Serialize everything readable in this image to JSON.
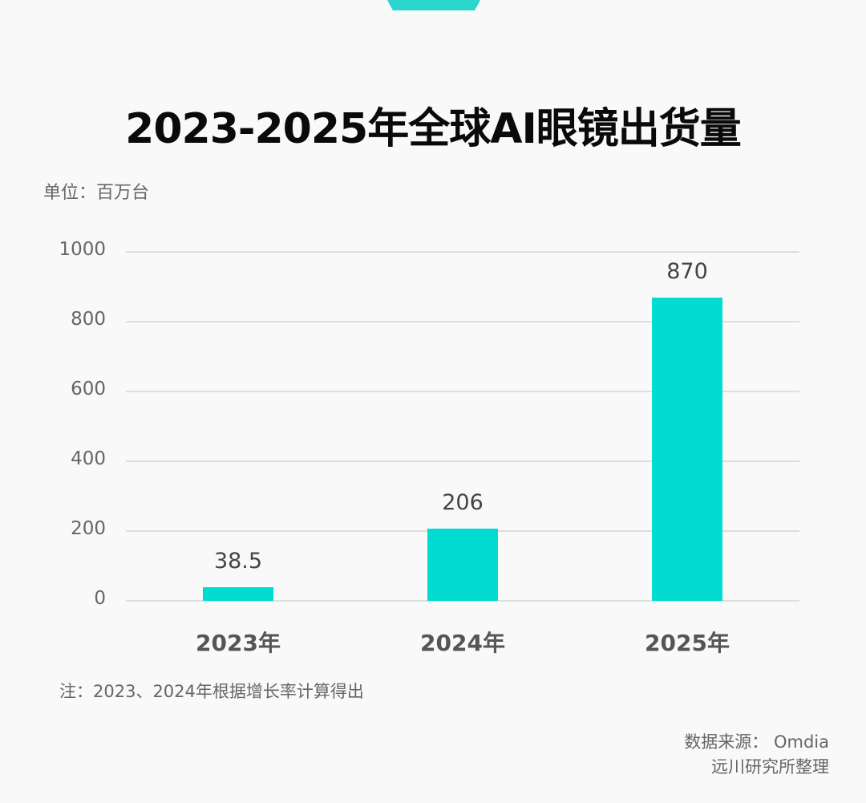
{
  "title": "2023-2025年全球AI眼镜出货量",
  "unit": "单位：百万台",
  "note": "注：2023、2024年根据增长率计算得出",
  "source": {
    "line1": "数据来源： Omdia",
    "line2": "远川研究所整理"
  },
  "colors": {
    "bar": "#00dcd2",
    "accent_tab": "#2dd6cd",
    "grid": "#dedede"
  },
  "chart_data": {
    "type": "bar",
    "title": "2023-2025年全球AI眼镜出货量",
    "xlabel": "",
    "ylabel": "单位：百万台",
    "categories": [
      "2023年",
      "2024年",
      "2025年"
    ],
    "values": [
      38.5,
      206,
      870
    ],
    "value_labels": [
      "38.5",
      "206",
      "870"
    ],
    "ylim": [
      0,
      1000
    ],
    "yticks": [
      "0",
      "200",
      "400",
      "600",
      "800",
      "1000"
    ],
    "grid": true,
    "legend": null
  }
}
